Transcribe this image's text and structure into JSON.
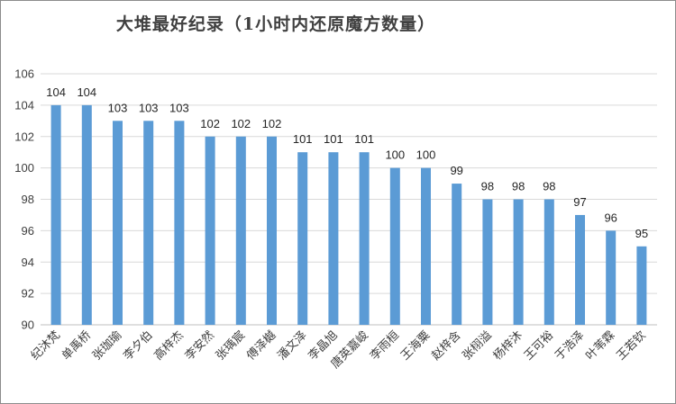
{
  "chart_data": {
    "type": "bar",
    "title": "大堆最好纪录（1小时内还原魔方数量）",
    "categories": [
      "纪沐梵",
      "单禹桥",
      "张珈瑜",
      "李夕伯",
      "高梓杰",
      "李安然",
      "张瑀宸",
      "傅泽樾",
      "潘文泽",
      "李晶旭",
      "唐英嘉峻",
      "李雨桓",
      "王海粟",
      "赵梓含",
      "张栩溢",
      "杨梓沐",
      "王可裕",
      "于浩泽",
      "叶苇霖",
      "王若钦"
    ],
    "values": [
      104,
      104,
      103,
      103,
      103,
      102,
      102,
      102,
      101,
      101,
      101,
      100,
      100,
      99,
      98,
      98,
      98,
      97,
      96,
      95
    ],
    "ylim": [
      90,
      106
    ],
    "yticks": [
      90,
      92,
      94,
      96,
      98,
      100,
      102,
      104,
      106
    ],
    "grid": true,
    "bar_color": "#5b9bd5",
    "grid_color": "#d9d9d9",
    "legend": "none",
    "xlabel": "",
    "ylabel": ""
  }
}
